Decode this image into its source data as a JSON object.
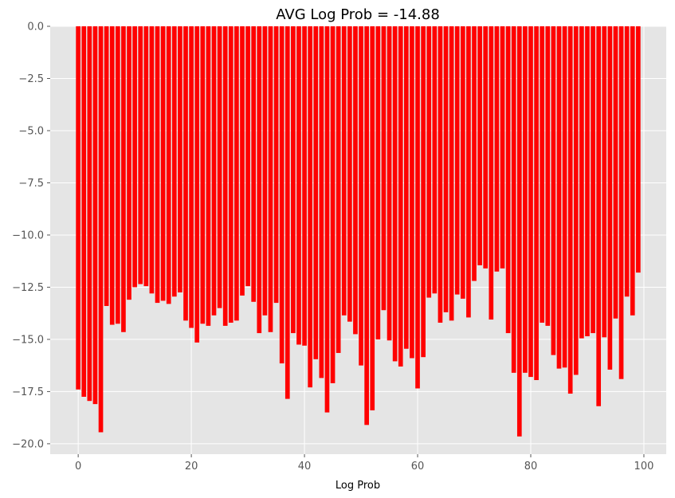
{
  "chart_data": {
    "type": "bar",
    "title": "AVG Log Prob = -14.88",
    "xlabel": "Log Prob",
    "ylabel": "",
    "xlim": [
      -4.95,
      103.95
    ],
    "ylim": [
      -20.5,
      0
    ],
    "xticks": [
      0,
      20,
      40,
      60,
      80,
      100
    ],
    "yticks": [
      0.0,
      -2.5,
      -5.0,
      -7.5,
      -10.0,
      -12.5,
      -15.0,
      -17.5,
      -20.0
    ],
    "xtick_labels": [
      "0",
      "20",
      "40",
      "60",
      "80",
      "100"
    ],
    "ytick_labels": [
      "0.0",
      "−2.5",
      "−5.0",
      "−7.5",
      "−10.0",
      "−12.5",
      "−15.0",
      "−17.5",
      "−20.0"
    ],
    "grid": true,
    "colors": {
      "bar": "#ff0000",
      "plot_bg": "#e5e5e5",
      "grid": "#ffffff"
    },
    "x": [
      0,
      1,
      2,
      3,
      4,
      5,
      6,
      7,
      8,
      9,
      10,
      11,
      12,
      13,
      14,
      15,
      16,
      17,
      18,
      19,
      20,
      21,
      22,
      23,
      24,
      25,
      26,
      27,
      28,
      29,
      30,
      31,
      32,
      33,
      34,
      35,
      36,
      37,
      38,
      39,
      40,
      41,
      42,
      43,
      44,
      45,
      46,
      47,
      48,
      49,
      50,
      51,
      52,
      53,
      54,
      55,
      56,
      57,
      58,
      59,
      60,
      61,
      62,
      63,
      64,
      65,
      66,
      67,
      68,
      69,
      70,
      71,
      72,
      73,
      74,
      75,
      76,
      77,
      78,
      79,
      80,
      81,
      82,
      83,
      84,
      85,
      86,
      87,
      88,
      89,
      90,
      91,
      92,
      93,
      94,
      95,
      96,
      97,
      98,
      99
    ],
    "values": [
      -17.4,
      -17.75,
      -17.95,
      -18.1,
      -19.45,
      -13.4,
      -14.3,
      -14.25,
      -14.65,
      -13.1,
      -12.5,
      -12.35,
      -12.45,
      -12.8,
      -13.25,
      -13.15,
      -13.3,
      -12.95,
      -12.75,
      -14.1,
      -14.45,
      -15.15,
      -14.25,
      -14.35,
      -13.85,
      -13.5,
      -14.35,
      -14.2,
      -14.1,
      -12.9,
      -12.45,
      -13.2,
      -14.7,
      -13.85,
      -14.65,
      -13.25,
      -16.15,
      -17.85,
      -14.7,
      -15.25,
      -15.3,
      -17.3,
      -15.95,
      -16.85,
      -18.5,
      -17.1,
      -15.65,
      -13.85,
      -14.15,
      -14.75,
      -16.25,
      -19.1,
      -18.4,
      -15,
      -13.6,
      -15.05,
      -16.05,
      -16.3,
      -15.45,
      -15.9,
      -17.35,
      -15.85,
      -13,
      -12.8,
      -14.2,
      -13.7,
      -14.1,
      -12.85,
      -13.05,
      -13.95,
      -12.2,
      -11.45,
      -11.6,
      -14.05,
      -11.75,
      -11.6,
      -14.7,
      -16.6,
      -19.65,
      -16.6,
      -16.8,
      -16.95,
      -14.2,
      -14.35,
      -15.75,
      -16.4,
      -16.35,
      -17.6,
      -16.7,
      -14.95,
      -14.85,
      -14.7,
      -18.2,
      -14.9,
      -16.45,
      -14,
      -16.9,
      -12.95,
      -13.85,
      -11.8
    ]
  }
}
